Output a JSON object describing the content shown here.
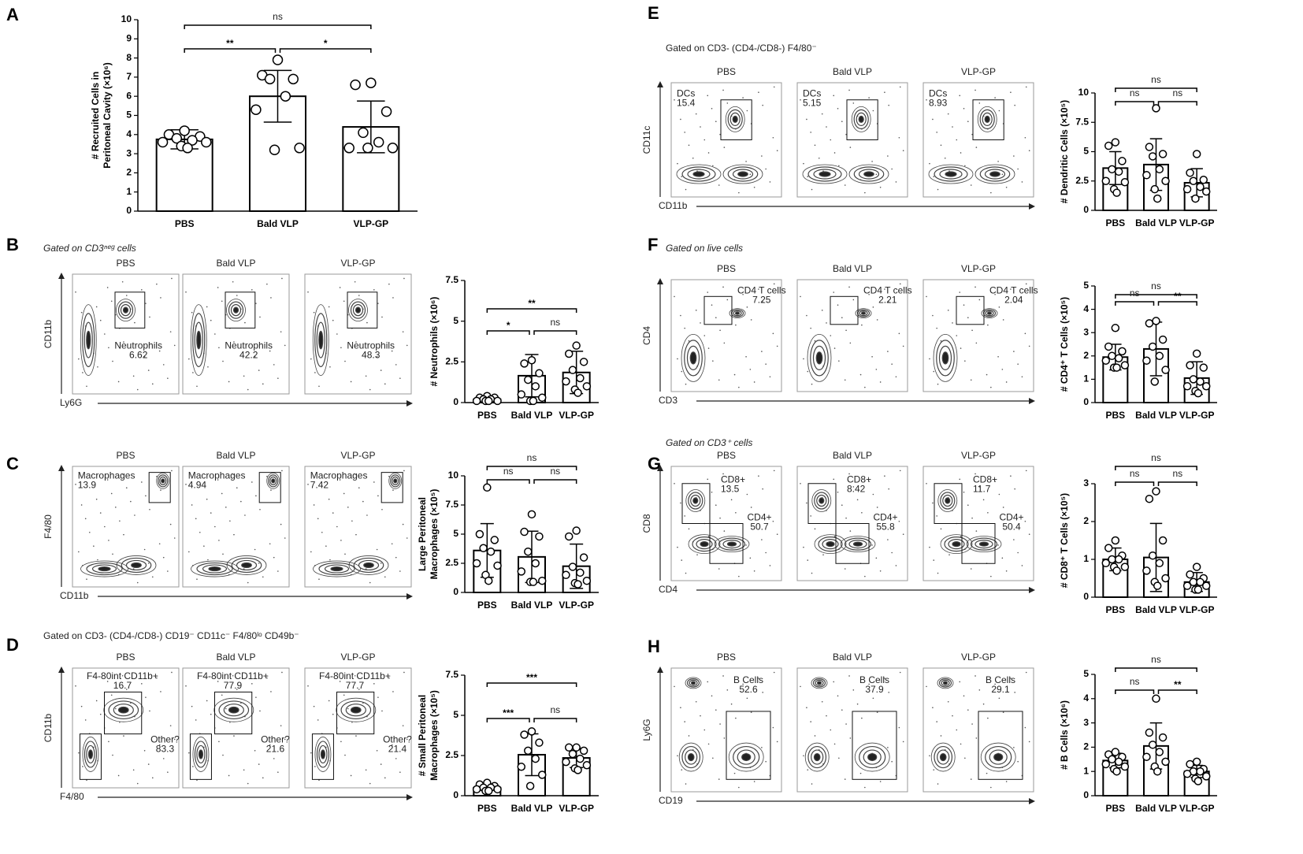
{
  "chart_data": [
    {
      "type": "bar",
      "panel": "A",
      "ylabel": [
        "# Recruited Cells in",
        "Peritoneal Cavity (×10⁶)"
      ],
      "categories": [
        "PBS",
        "Bald VLP",
        "VLP-GP"
      ],
      "color": "#ffffff",
      "values": [
        3.75,
        6.0,
        4.4
      ],
      "errors": [
        0.5,
        1.35,
        1.35
      ],
      "points": [
        [
          4.2,
          4.0,
          3.9,
          3.8,
          3.7,
          3.6,
          3.6,
          3.4,
          3.3
        ],
        [
          7.9,
          7.1,
          6.9,
          6.9,
          6.0,
          5.3,
          3.3,
          3.2
        ],
        [
          6.7,
          6.6,
          5.2,
          4.1,
          3.6,
          3.3,
          3.3,
          3.3
        ]
      ],
      "ylim": [
        0,
        10
      ],
      "yticks": [
        0,
        1,
        2,
        3,
        4,
        5,
        6,
        7,
        8,
        9,
        10
      ],
      "significance": [
        {
          "pair": [
            0,
            2
          ],
          "label": "ns"
        },
        {
          "pair": [
            0,
            1
          ],
          "label": "**"
        },
        {
          "pair": [
            1,
            2
          ],
          "label": "*"
        }
      ]
    },
    {
      "type": "bar",
      "panel": "B",
      "gate_title": "Gated on CD3ⁿᵉᵍ cells",
      "x_axis": "Ly6G",
      "y_axis": "CD11b",
      "plots": [
        {
          "title": "PBS",
          "gates": [
            {
              "label": "Neutrophils",
              "value": 6.62
            }
          ]
        },
        {
          "title": "Bald VLP",
          "gates": [
            {
              "label": "Neutrophils",
              "value": 42.2
            }
          ]
        },
        {
          "title": "VLP-GP",
          "gates": [
            {
              "label": "Neutrophils",
              "value": 48.3
            }
          ]
        }
      ],
      "ylabel": [
        "# Neutrophils (×10⁶)"
      ],
      "categories": [
        "PBS",
        "Bald VLP",
        "VLP-GP"
      ],
      "color": "#ffffff",
      "values": [
        0.2,
        1.65,
        1.85
      ],
      "errors": [
        0.15,
        1.3,
        1.3
      ],
      "points": [
        [
          0.4,
          0.3,
          0.3,
          0.2,
          0.2,
          0.1,
          0.1,
          0.1,
          0.1
        ],
        [
          2.6,
          2.4,
          1.8,
          1.4,
          1.0,
          0.5,
          0.3,
          0.1,
          0.1
        ],
        [
          3.5,
          3.0,
          2.5,
          2.0,
          1.5,
          1.3,
          1.0,
          0.8,
          0.6
        ]
      ],
      "ylim": [
        0,
        7.5
      ],
      "yticks": [
        0,
        2.5,
        5,
        7.5
      ],
      "significance": [
        {
          "pair": [
            0,
            2
          ],
          "label": "**"
        },
        {
          "pair": [
            0,
            1
          ],
          "label": "*"
        },
        {
          "pair": [
            1,
            2
          ],
          "label": "ns"
        }
      ]
    },
    {
      "type": "bar",
      "panel": "C",
      "x_axis": "CD11b",
      "y_axis": "F4/80",
      "plots": [
        {
          "title": "PBS",
          "gates": [
            {
              "label": "Macrophages",
              "value": 13.9
            }
          ]
        },
        {
          "title": "Bald VLP",
          "gates": [
            {
              "label": "Macrophages",
              "value": 4.94
            }
          ]
        },
        {
          "title": "VLP-GP",
          "gates": [
            {
              "label": "Macrophages",
              "value": 7.42
            }
          ]
        }
      ],
      "ylabel": [
        "Large Peritoneal",
        "Macrophages (×10⁵)"
      ],
      "categories": [
        "PBS",
        "Bald VLP",
        "VLP-GP"
      ],
      "color": "#ffffff",
      "values": [
        3.6,
        3.05,
        2.25
      ],
      "errors": [
        2.3,
        2.2,
        1.9
      ],
      "points": [
        [
          9.0,
          5.0,
          4.5,
          3.8,
          3.5,
          2.5,
          2.3,
          1.5,
          1.0
        ],
        [
          6.7,
          5.2,
          4.8,
          3.5,
          2.5,
          1.8,
          1.0,
          0.9,
          0.9
        ],
        [
          5.3,
          4.8,
          3.0,
          2.2,
          1.7,
          1.5,
          1.0,
          0.8,
          0.7
        ]
      ],
      "ylim": [
        0,
        10
      ],
      "yticks": [
        0,
        2.5,
        5,
        7.5,
        10
      ],
      "significance": [
        {
          "pair": [
            0,
            2
          ],
          "label": "ns"
        },
        {
          "pair": [
            0,
            1
          ],
          "label": "ns"
        },
        {
          "pair": [
            1,
            2
          ],
          "label": "ns"
        }
      ]
    },
    {
      "type": "bar",
      "panel": "D",
      "gate_title": "Gated on CD3- (CD4-/CD8-) CD19⁻ CD11c⁻ F4/80ˡᵒ CD49b⁻",
      "x_axis": "F4/80",
      "y_axis": "CD11b",
      "plots": [
        {
          "title": "PBS",
          "gates": [
            {
              "label": "F4-80int CD11b+",
              "value": 16.7
            },
            {
              "label": "Other?",
              "value": 83.3
            }
          ]
        },
        {
          "title": "Bald VLP",
          "gates": [
            {
              "label": "F4-80int CD11b+",
              "value": 77.9
            },
            {
              "label": "Other?",
              "value": 21.6
            }
          ]
        },
        {
          "title": "VLP-GP",
          "gates": [
            {
              "label": "F4-80int CD11b+",
              "value": 77.7
            },
            {
              "label": "Other?",
              "value": 21.4
            }
          ]
        }
      ],
      "ylabel": [
        "# Small Peritoneal",
        "Macrophages (×10⁵)"
      ],
      "categories": [
        "PBS",
        "Bald VLP",
        "VLP-GP"
      ],
      "color": "#ffffff",
      "values": [
        0.5,
        2.55,
        2.35
      ],
      "errors": [
        0.15,
        1.3,
        0.6
      ],
      "points": [
        [
          0.8,
          0.7,
          0.6,
          0.5,
          0.5,
          0.4,
          0.4,
          0.3,
          0.3
        ],
        [
          4.0,
          3.8,
          3.3,
          2.8,
          2.3,
          1.8,
          1.3,
          0.6
        ],
        [
          3.0,
          3.0,
          2.8,
          2.6,
          2.3,
          2.1,
          1.9,
          1.7,
          1.6
        ]
      ],
      "ylim": [
        0,
        7.5
      ],
      "yticks": [
        0,
        2.5,
        5,
        7.5
      ],
      "significance": [
        {
          "pair": [
            0,
            2
          ],
          "label": "***"
        },
        {
          "pair": [
            0,
            1
          ],
          "label": "***"
        },
        {
          "pair": [
            1,
            2
          ],
          "label": "ns"
        }
      ]
    },
    {
      "type": "bar",
      "panel": "E",
      "gate_title": "Gated on CD3- (CD4-/CD8-)  F4/80⁻",
      "x_axis": "CD11b",
      "y_axis": "CD11c",
      "plots": [
        {
          "title": "PBS",
          "gates": [
            {
              "label": "DCs",
              "value": 15.4
            }
          ]
        },
        {
          "title": "Bald VLP",
          "gates": [
            {
              "label": "DCs",
              "value": 5.15
            }
          ]
        },
        {
          "title": "VLP-GP",
          "gates": [
            {
              "label": "DCs",
              "value": 8.93
            }
          ]
        }
      ],
      "ylabel": [
        "# Dendritic Cells (×10⁵)"
      ],
      "categories": [
        "PBS",
        "Bald VLP",
        "VLP-GP"
      ],
      "color": "#ffffff",
      "values": [
        3.6,
        3.9,
        2.35
      ],
      "errors": [
        1.4,
        2.2,
        1.2
      ],
      "points": [
        [
          5.8,
          5.5,
          4.2,
          3.5,
          3.3,
          2.5,
          2.4,
          1.8,
          1.5
        ],
        [
          8.7,
          5.4,
          4.8,
          4.6,
          3.5,
          3.0,
          2.5,
          1.8,
          1.0
        ],
        [
          4.8,
          3.2,
          2.6,
          2.5,
          2.0,
          1.8,
          1.6,
          1.0
        ]
      ],
      "ylim": [
        0,
        10
      ],
      "yticks": [
        0,
        2.5,
        5,
        7.5,
        10
      ],
      "significance": [
        {
          "pair": [
            0,
            2
          ],
          "label": "ns"
        },
        {
          "pair": [
            0,
            1
          ],
          "label": "ns"
        },
        {
          "pair": [
            1,
            2
          ],
          "label": "ns"
        }
      ]
    },
    {
      "type": "bar",
      "panel": "F",
      "gate_title": "Gated on live cells",
      "x_axis": "CD3",
      "y_axis": "CD4",
      "plots": [
        {
          "title": "PBS",
          "gates": [
            {
              "label": "CD4 T cells",
              "value": 7.25
            }
          ]
        },
        {
          "title": "Bald VLP",
          "gates": [
            {
              "label": "CD4 T cells",
              "value": 2.21
            }
          ]
        },
        {
          "title": "VLP-GP",
          "gates": [
            {
              "label": "CD4 T cells",
              "value": 2.04
            }
          ]
        }
      ],
      "ylabel": [
        "# CD4⁺ T Cells (×10⁵)"
      ],
      "categories": [
        "PBS",
        "Bald VLP",
        "VLP-GP"
      ],
      "color": "#ffffff",
      "values": [
        1.95,
        2.3,
        1.05
      ],
      "errors": [
        0.55,
        1.15,
        0.7
      ],
      "points": [
        [
          3.2,
          2.4,
          2.2,
          2.0,
          1.9,
          1.8,
          1.6,
          1.5,
          1.5
        ],
        [
          3.5,
          3.4,
          2.7,
          2.4,
          2.0,
          1.8,
          1.4,
          0.9
        ],
        [
          2.1,
          1.6,
          1.5,
          1.0,
          0.9,
          0.7,
          0.7,
          0.5,
          0.4
        ]
      ],
      "ylim": [
        0,
        5
      ],
      "yticks": [
        0,
        1,
        2,
        3,
        4,
        5
      ],
      "significance": [
        {
          "pair": [
            0,
            2
          ],
          "label": "ns"
        },
        {
          "pair": [
            0,
            1
          ],
          "label": "ns"
        },
        {
          "pair": [
            1,
            2
          ],
          "label": "**"
        }
      ]
    },
    {
      "type": "bar",
      "panel": "G",
      "gate_title": "Gated on CD3⁺ cells",
      "x_axis": "CD4",
      "y_axis": "CD8",
      "plots": [
        {
          "title": "PBS",
          "gates": [
            {
              "label": "CD8+",
              "value": 13.5
            },
            {
              "label": "CD4+",
              "value": 50.7
            }
          ]
        },
        {
          "title": "Bald VLP",
          "gates": [
            {
              "label": "CD8+",
              "value": 8.42
            },
            {
              "label": "CD4+",
              "value": 55.8
            }
          ]
        },
        {
          "title": "VLP-GP",
          "gates": [
            {
              "label": "CD8+",
              "value": 11.7
            },
            {
              "label": "CD4+",
              "value": 50.4
            }
          ]
        }
      ],
      "ylabel": [
        "# CD8⁺ T Cells (×10⁵)"
      ],
      "categories": [
        "PBS",
        "Bald VLP",
        "VLP-GP"
      ],
      "color": "#ffffff",
      "values": [
        1.0,
        1.05,
        0.4
      ],
      "errors": [
        0.3,
        0.9,
        0.25
      ],
      "points": [
        [
          1.5,
          1.3,
          1.1,
          1.0,
          1.0,
          0.9,
          0.8,
          0.8,
          0.7
        ],
        [
          2.8,
          2.6,
          1.5,
          1.1,
          0.9,
          0.7,
          0.5,
          0.4,
          0.3
        ],
        [
          0.8,
          0.6,
          0.5,
          0.4,
          0.4,
          0.3,
          0.3,
          0.2,
          0.2
        ]
      ],
      "ylim": [
        0,
        3
      ],
      "yticks": [
        0,
        1,
        2,
        3
      ],
      "significance": [
        {
          "pair": [
            0,
            2
          ],
          "label": "ns"
        },
        {
          "pair": [
            0,
            1
          ],
          "label": "ns"
        },
        {
          "pair": [
            1,
            2
          ],
          "label": "ns"
        }
      ]
    },
    {
      "type": "bar",
      "panel": "H",
      "x_axis": "CD19",
      "y_axis": "Ly6G",
      "plots": [
        {
          "title": "PBS",
          "gates": [
            {
              "label": "B Cells",
              "value": 52.6
            }
          ]
        },
        {
          "title": "Bald VLP",
          "gates": [
            {
              "label": "B Cells",
              "value": 37.9
            }
          ]
        },
        {
          "title": "VLP-GP",
          "gates": [
            {
              "label": "B Cells",
              "value": 29.1
            }
          ]
        }
      ],
      "ylabel": [
        "# B Cells (×10⁶)"
      ],
      "categories": [
        "PBS",
        "Bald VLP",
        "VLP-GP"
      ],
      "color": "#ffffff",
      "values": [
        1.45,
        2.05,
        1.0
      ],
      "errors": [
        0.3,
        0.95,
        0.25
      ],
      "points": [
        [
          1.8,
          1.7,
          1.6,
          1.5,
          1.4,
          1.3,
          1.2,
          1.1,
          1.0
        ],
        [
          4.0,
          2.6,
          2.4,
          2.1,
          1.8,
          1.6,
          1.4,
          1.2,
          1.0
        ],
        [
          1.4,
          1.3,
          1.1,
          1.0,
          1.0,
          0.9,
          0.8,
          0.7,
          0.6
        ]
      ],
      "ylim": [
        0,
        5
      ],
      "yticks": [
        0,
        1,
        2,
        3,
        4,
        5
      ],
      "significance": [
        {
          "pair": [
            0,
            2
          ],
          "label": "ns"
        },
        {
          "pair": [
            0,
            1
          ],
          "label": "ns"
        },
        {
          "pair": [
            1,
            2
          ],
          "label": "**"
        }
      ]
    }
  ]
}
